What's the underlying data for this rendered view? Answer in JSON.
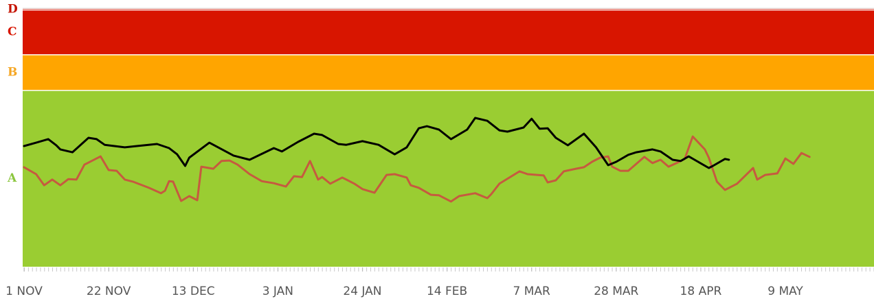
{
  "chart_data": {
    "type": "line",
    "bands": [
      {
        "name": "A",
        "from": 0,
        "to": 68.4,
        "color": "#9acd32"
      },
      {
        "name": "B",
        "from": 68.4,
        "to": 82.2,
        "color": "#ffa500"
      },
      {
        "name": "C",
        "from": 82.2,
        "to": 99.6,
        "color": "#d81500"
      },
      {
        "name": "D",
        "from": 99.6,
        "to": 100,
        "color": "#d81500"
      }
    ],
    "band_label_colors": [
      "#8cc63f",
      "#f5a623",
      "#d81500",
      "#c41200"
    ],
    "xlim": [
      0,
      211
    ],
    "ylim": [
      0,
      100
    ],
    "xticks": [
      {
        "value": 0,
        "label": "1 NOV"
      },
      {
        "value": 21,
        "label": "22 NOV"
      },
      {
        "value": 42,
        "label": "13 DEC"
      },
      {
        "value": 63,
        "label": "3 JAN"
      },
      {
        "value": 84,
        "label": "24 JAN"
      },
      {
        "value": 105,
        "label": "14 FEB"
      },
      {
        "value": 126,
        "label": "7 MAR"
      },
      {
        "value": 147,
        "label": "28 MAR"
      },
      {
        "value": 168,
        "label": "18 APR"
      },
      {
        "value": 189,
        "label": "9 MAY"
      }
    ],
    "series": [
      {
        "color": "#000000",
        "x": [
          0,
          3,
          6,
          8,
          9,
          12,
          16,
          18,
          20,
          25,
          28,
          33,
          36,
          38,
          40,
          41,
          46,
          52,
          56,
          62,
          64,
          68,
          72,
          74,
          78,
          80,
          84,
          88,
          92,
          95,
          98,
          100,
          103,
          106,
          110,
          112,
          115,
          118,
          120,
          124,
          126,
          128,
          130,
          132,
          135,
          139,
          142,
          145,
          147,
          150,
          152,
          156,
          158,
          161,
          163,
          165,
          170,
          171,
          174,
          175
        ],
        "values": [
          46.8,
          48.1,
          49.5,
          47.1,
          45.5,
          44.4,
          50.0,
          49.5,
          47.3,
          46.3,
          46.8,
          47.6,
          46.0,
          43.6,
          39.1,
          42.3,
          48.1,
          43.1,
          41.5,
          46.0,
          44.7,
          48.4,
          51.6,
          51.1,
          47.6,
          47.3,
          48.7,
          47.3,
          43.6,
          46.3,
          53.7,
          54.5,
          53.2,
          49.5,
          53.2,
          57.7,
          56.6,
          52.9,
          52.4,
          54.0,
          57.4,
          53.5,
          53.7,
          50.0,
          47.1,
          51.6,
          46.3,
          39.4,
          40.7,
          43.4,
          44.4,
          45.5,
          44.7,
          41.5,
          41.0,
          42.8,
          38.3,
          39.1,
          41.8,
          41.5
        ]
      },
      {
        "color": "#c65a3f",
        "x": [
          0,
          3,
          5,
          7,
          9,
          11,
          13,
          15,
          17,
          19,
          21,
          23,
          25,
          27,
          31,
          34,
          35,
          36,
          37,
          39,
          41,
          43,
          44,
          47,
          49,
          51,
          53,
          56,
          59,
          62,
          65,
          67,
          69,
          71,
          73,
          74,
          76,
          79,
          82,
          84,
          87,
          90,
          92,
          95,
          96,
          98,
          101,
          103,
          106,
          108,
          112,
          115,
          116,
          118,
          123,
          125,
          129,
          130,
          132,
          134,
          137,
          139,
          141,
          143,
          145,
          146,
          148,
          150,
          154,
          156,
          158,
          160,
          162,
          164,
          166,
          169,
          170,
          172,
          174,
          177,
          181,
          182,
          184,
          187,
          189,
          191,
          193,
          195
        ],
        "values": [
          38.6,
          35.9,
          31.6,
          33.8,
          31.6,
          34.0,
          33.8,
          39.6,
          41.2,
          42.8,
          37.5,
          37.2,
          33.8,
          33.0,
          30.6,
          28.5,
          29.5,
          33.2,
          33.0,
          25.5,
          27.4,
          25.8,
          38.8,
          38.0,
          41.0,
          41.2,
          39.6,
          35.9,
          33.2,
          32.4,
          31.1,
          35.1,
          34.8,
          41.0,
          33.8,
          34.8,
          32.2,
          34.6,
          32.2,
          30.1,
          28.7,
          35.6,
          35.9,
          34.6,
          31.6,
          30.6,
          27.9,
          27.7,
          25.3,
          27.4,
          28.5,
          26.6,
          28.2,
          32.2,
          37.0,
          35.9,
          35.4,
          32.7,
          33.5,
          37.0,
          38.0,
          38.6,
          40.7,
          42.3,
          42.8,
          38.8,
          37.2,
          37.2,
          42.6,
          40.2,
          41.5,
          38.8,
          40.2,
          41.8,
          50.5,
          45.5,
          42.3,
          33.0,
          29.8,
          32.2,
          38.3,
          33.8,
          35.6,
          36.2,
          42.0,
          39.9,
          44.1,
          42.6
        ]
      }
    ]
  }
}
